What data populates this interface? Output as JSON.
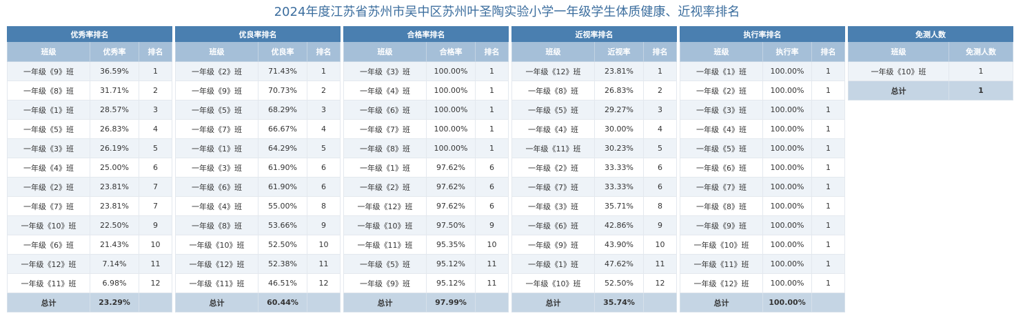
{
  "page": {
    "title": "2024年度江苏省苏州市吴中区苏州叶圣陶实验小学一年级学生体质健康、近视率排名"
  },
  "tables": [
    {
      "title": "优秀率排名",
      "headers": [
        "班级",
        "优秀率",
        "排名"
      ],
      "rows": [
        [
          "一年级《9》班",
          "36.59%",
          "1"
        ],
        [
          "一年级《8》班",
          "31.71%",
          "2"
        ],
        [
          "一年级《1》班",
          "28.57%",
          "3"
        ],
        [
          "一年级《5》班",
          "26.83%",
          "4"
        ],
        [
          "一年级《3》班",
          "26.19%",
          "5"
        ],
        [
          "一年级《4》班",
          "25.00%",
          "6"
        ],
        [
          "一年级《2》班",
          "23.81%",
          "7"
        ],
        [
          "一年级《7》班",
          "23.81%",
          "7"
        ],
        [
          "一年级《10》班",
          "22.50%",
          "9"
        ],
        [
          "一年级《6》班",
          "21.43%",
          "10"
        ],
        [
          "一年级《12》班",
          "7.14%",
          "11"
        ],
        [
          "一年级《11》班",
          "6.98%",
          "12"
        ]
      ],
      "footer": [
        "总计",
        "23.29%",
        ""
      ]
    },
    {
      "title": "优良率排名",
      "headers": [
        "班级",
        "优良率",
        "排名"
      ],
      "rows": [
        [
          "一年级《2》班",
          "71.43%",
          "1"
        ],
        [
          "一年级《9》班",
          "70.73%",
          "2"
        ],
        [
          "一年级《5》班",
          "68.29%",
          "3"
        ],
        [
          "一年级《7》班",
          "66.67%",
          "4"
        ],
        [
          "一年级《1》班",
          "64.29%",
          "5"
        ],
        [
          "一年级《3》班",
          "61.90%",
          "6"
        ],
        [
          "一年级《6》班",
          "61.90%",
          "6"
        ],
        [
          "一年级《4》班",
          "55.00%",
          "8"
        ],
        [
          "一年级《8》班",
          "53.66%",
          "9"
        ],
        [
          "一年级《10》班",
          "52.50%",
          "10"
        ],
        [
          "一年级《12》班",
          "52.38%",
          "11"
        ],
        [
          "一年级《11》班",
          "46.51%",
          "12"
        ]
      ],
      "footer": [
        "总计",
        "60.44%",
        ""
      ]
    },
    {
      "title": "合格率排名",
      "headers": [
        "班级",
        "合格率",
        "排名"
      ],
      "rows": [
        [
          "一年级《3》班",
          "100.00%",
          "1"
        ],
        [
          "一年级《4》班",
          "100.00%",
          "1"
        ],
        [
          "一年级《6》班",
          "100.00%",
          "1"
        ],
        [
          "一年级《7》班",
          "100.00%",
          "1"
        ],
        [
          "一年级《8》班",
          "100.00%",
          "1"
        ],
        [
          "一年级《1》班",
          "97.62%",
          "6"
        ],
        [
          "一年级《2》班",
          "97.62%",
          "6"
        ],
        [
          "一年级《12》班",
          "97.62%",
          "6"
        ],
        [
          "一年级《10》班",
          "97.50%",
          "9"
        ],
        [
          "一年级《11》班",
          "95.35%",
          "10"
        ],
        [
          "一年级《5》班",
          "95.12%",
          "11"
        ],
        [
          "一年级《9》班",
          "95.12%",
          "11"
        ]
      ],
      "footer": [
        "总计",
        "97.99%",
        ""
      ]
    },
    {
      "title": "近视率排名",
      "headers": [
        "班级",
        "近视率",
        "排名"
      ],
      "rows": [
        [
          "一年级《12》班",
          "23.81%",
          "1"
        ],
        [
          "一年级《8》班",
          "26.83%",
          "2"
        ],
        [
          "一年级《5》班",
          "29.27%",
          "3"
        ],
        [
          "一年级《4》班",
          "30.00%",
          "4"
        ],
        [
          "一年级《11》班",
          "30.23%",
          "5"
        ],
        [
          "一年级《2》班",
          "33.33%",
          "6"
        ],
        [
          "一年级《7》班",
          "33.33%",
          "6"
        ],
        [
          "一年级《3》班",
          "35.71%",
          "8"
        ],
        [
          "一年级《6》班",
          "42.86%",
          "9"
        ],
        [
          "一年级《9》班",
          "43.90%",
          "10"
        ],
        [
          "一年级《1》班",
          "47.62%",
          "11"
        ],
        [
          "一年级《10》班",
          "52.50%",
          "12"
        ]
      ],
      "footer": [
        "总计",
        "35.74%",
        ""
      ]
    },
    {
      "title": "执行率排名",
      "headers": [
        "班级",
        "执行率",
        "排名"
      ],
      "rows": [
        [
          "一年级《1》班",
          "100.00%",
          "1"
        ],
        [
          "一年级《2》班",
          "100.00%",
          "1"
        ],
        [
          "一年级《3》班",
          "100.00%",
          "1"
        ],
        [
          "一年级《4》班",
          "100.00%",
          "1"
        ],
        [
          "一年级《5》班",
          "100.00%",
          "1"
        ],
        [
          "一年级《6》班",
          "100.00%",
          "1"
        ],
        [
          "一年级《7》班",
          "100.00%",
          "1"
        ],
        [
          "一年级《8》班",
          "100.00%",
          "1"
        ],
        [
          "一年级《9》班",
          "100.00%",
          "1"
        ],
        [
          "一年级《10》班",
          "100.00%",
          "1"
        ],
        [
          "一年级《11》班",
          "100.00%",
          "1"
        ],
        [
          "一年级《12》班",
          "100.00%",
          "1"
        ]
      ],
      "footer": [
        "总计",
        "100.00%",
        ""
      ]
    },
    {
      "title": "免测人数",
      "headers": [
        "班级",
        "免测人数"
      ],
      "rows": [
        [
          "一年级《10》班",
          "1"
        ]
      ],
      "footer": [
        "总计",
        "1"
      ]
    }
  ],
  "colors": {
    "title_text": "#3c6e9e",
    "title_bar": "#4a7fb0",
    "header_row": "#a5bfd8",
    "row_stripe": "#eef3f8",
    "footer_row": "#c5d5e4"
  }
}
